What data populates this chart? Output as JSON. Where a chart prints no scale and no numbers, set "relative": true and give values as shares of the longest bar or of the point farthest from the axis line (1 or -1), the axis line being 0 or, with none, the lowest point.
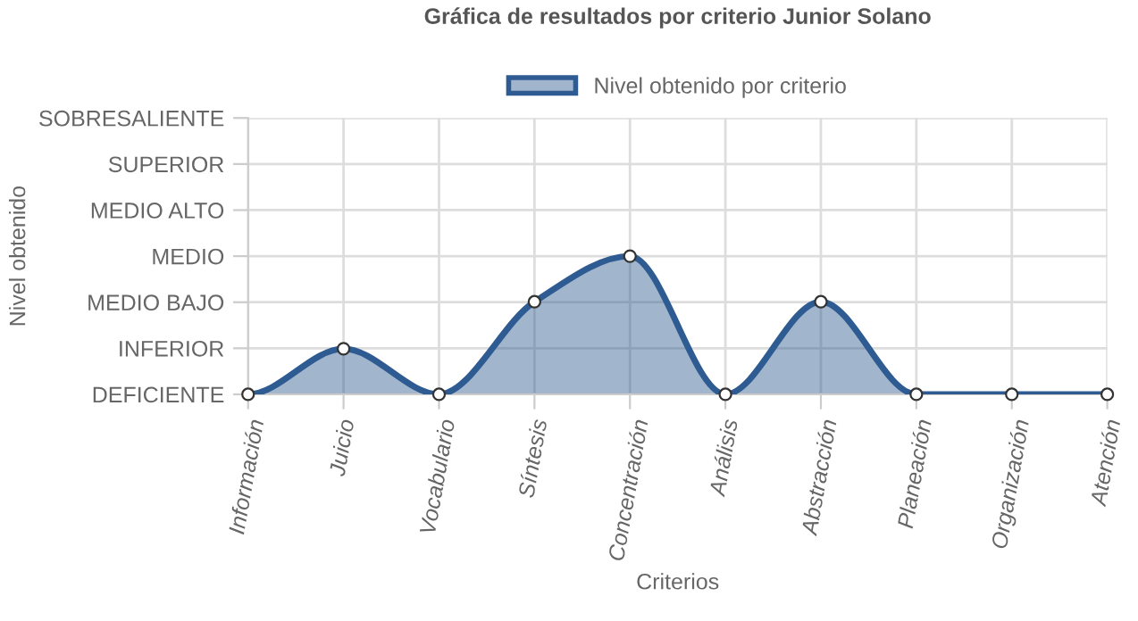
{
  "chart_data": {
    "type": "area",
    "title": "Gráfica de resultados por criterio Junior Solano",
    "xlabel": "Criterios",
    "annotations": [
      "Nivel obtenido"
    ],
    "categories": [
      "Información",
      "Juicio",
      "Vocabulario",
      "Síntesis",
      "Concentración",
      "Análisis",
      "Abstracción",
      "Planeación",
      "Organización",
      "Atención"
    ],
    "y_categories": [
      "SOBRESALIENTE",
      "SUPERIOR",
      "MEDIO ALTO",
      "MEDIO",
      "MEDIO BAJO",
      "INFERIOR",
      "DEFICIENTE"
    ],
    "series": [
      {
        "name": "Nivel obtenido por criterio",
        "color": "#2e5b91",
        "values": [
          0,
          0.33,
          0,
          0.67,
          1,
          0,
          0.67,
          0,
          0,
          0
        ]
      }
    ],
    "relative": true,
    "ylim": [
      0,
      2
    ],
    "grid": true,
    "legend": "top",
    "marker": "circle",
    "line_style": "solid"
  }
}
